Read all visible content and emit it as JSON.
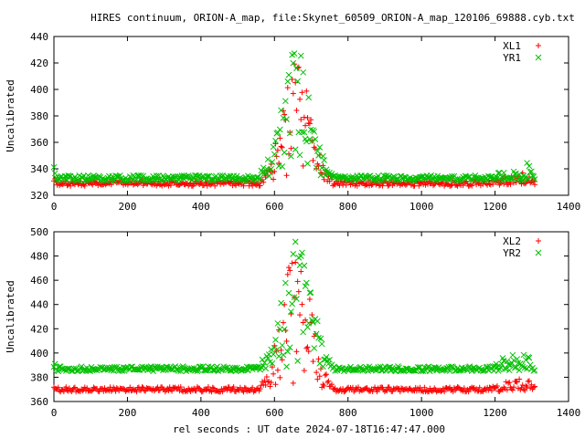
{
  "title": "HIRES continuum, ORION-A_map, file:Skynet_60509_ORION-A_map_120106_69888.cyb.txt",
  "xlabel": "rel seconds : UT date 2024-07-18T16:47:47.000",
  "colors": {
    "series_a": "#ff0000",
    "series_b": "#00c000",
    "axis": "#000000"
  },
  "chart_data": [
    {
      "type": "scatter",
      "title": "",
      "xlabel": "",
      "ylabel": "Uncalibrated",
      "xlim": [
        0,
        1400
      ],
      "ylim": [
        320,
        440
      ],
      "xticks": [
        "0",
        "200",
        "400",
        "600",
        "800",
        "1000",
        "1200",
        "1400"
      ],
      "yticks": [
        "320",
        "340",
        "360",
        "380",
        "400",
        "420",
        "440"
      ],
      "legend_position": "top-right",
      "series": [
        {
          "name": "XL1",
          "marker": "+",
          "color": "#ff0000",
          "baseline": 329,
          "noise": 2,
          "peak": {
            "center": 660,
            "width": 55,
            "amplitude": 92,
            "spread": 0.7
          },
          "edge_bumps": [
            {
              "x": 1280,
              "amp": 12
            },
            {
              "x": 1230,
              "amp": 6
            }
          ]
        },
        {
          "name": "YR1",
          "marker": "x",
          "color": "#00c000",
          "baseline": 333,
          "noise": 2,
          "peak": {
            "center": 660,
            "width": 55,
            "amplitude": 98,
            "spread": 0.75
          },
          "edge_bumps": [
            {
              "x": 1280,
              "amp": 14
            },
            {
              "x": 1230,
              "amp": 8
            }
          ]
        }
      ]
    },
    {
      "type": "scatter",
      "title": "",
      "xlabel": "rel seconds : UT date 2024-07-18T16:47:47.000",
      "ylabel": "Uncalibrated",
      "xlim": [
        0,
        1400
      ],
      "ylim": [
        360,
        500
      ],
      "xticks": [
        "0",
        "200",
        "400",
        "600",
        "800",
        "1000",
        "1200",
        "1400"
      ],
      "yticks": [
        "360",
        "380",
        "400",
        "420",
        "440",
        "460",
        "480",
        "500"
      ],
      "legend_position": "top-right",
      "series": [
        {
          "name": "XL2",
          "marker": "+",
          "color": "#ff0000",
          "baseline": 370,
          "noise": 2,
          "peak": {
            "center": 660,
            "width": 55,
            "amplitude": 118,
            "spread": 0.7
          },
          "edge_bumps": [
            {
              "x": 1280,
              "amp": 10
            },
            {
              "x": 1230,
              "amp": 8
            }
          ]
        },
        {
          "name": "YR2",
          "marker": "x",
          "color": "#00c000",
          "baseline": 387,
          "noise": 2,
          "peak": {
            "center": 660,
            "width": 55,
            "amplitude": 112,
            "spread": 0.75
          },
          "edge_bumps": [
            {
              "x": 1280,
              "amp": 16
            },
            {
              "x": 1230,
              "amp": 12
            }
          ]
        }
      ]
    }
  ]
}
